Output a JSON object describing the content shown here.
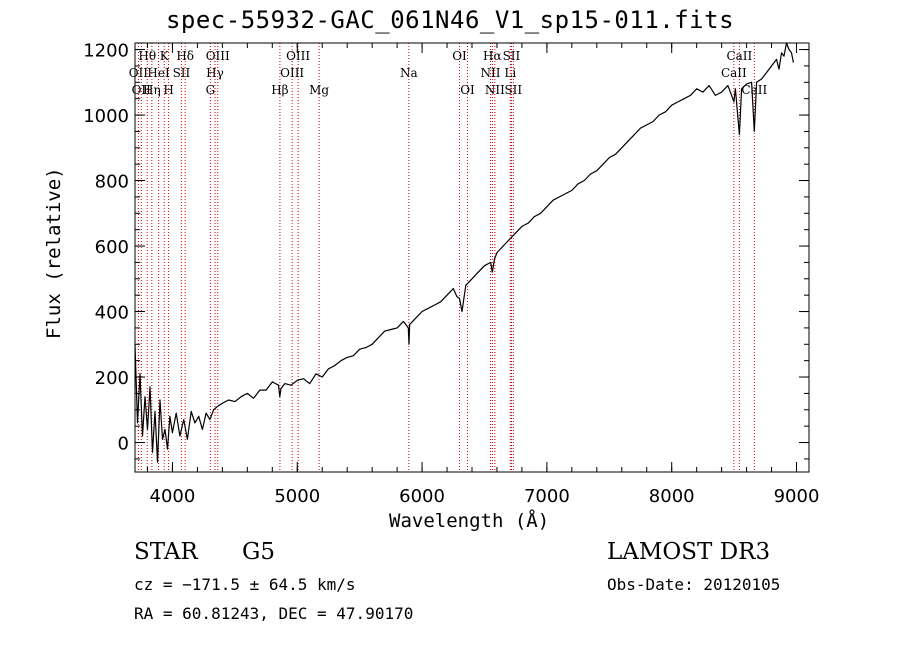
{
  "chart_data": {
    "type": "line",
    "title": "spec-55932-GAC_061N46_V1_sp15-011.fits",
    "xlabel": "Wavelength (Å)",
    "ylabel": "Flux (relative)",
    "xlim": [
      3700,
      9100
    ],
    "ylim": [
      -90,
      1220
    ],
    "xticks": [
      4000,
      5000,
      6000,
      7000,
      8000,
      9000
    ],
    "yticks": [
      0,
      200,
      400,
      600,
      800,
      1000,
      1200
    ],
    "grid": false,
    "series": [
      {
        "name": "flux",
        "x": [
          3700,
          3720,
          3740,
          3760,
          3780,
          3800,
          3820,
          3840,
          3860,
          3880,
          3900,
          3920,
          3940,
          3960,
          3980,
          4000,
          4030,
          4060,
          4090,
          4120,
          4150,
          4180,
          4210,
          4240,
          4270,
          4300,
          4330,
          4360,
          4400,
          4450,
          4500,
          4550,
          4600,
          4650,
          4700,
          4750,
          4800,
          4850,
          4860,
          4870,
          4900,
          4950,
          5000,
          5050,
          5100,
          5150,
          5200,
          5250,
          5300,
          5350,
          5400,
          5450,
          5500,
          5550,
          5600,
          5650,
          5700,
          5750,
          5800,
          5850,
          5890,
          5895,
          5900,
          5950,
          6000,
          6050,
          6100,
          6150,
          6200,
          6250,
          6280,
          6300,
          6320,
          6350,
          6400,
          6450,
          6500,
          6550,
          6563,
          6580,
          6600,
          6650,
          6700,
          6750,
          6800,
          6850,
          6900,
          6950,
          7000,
          7050,
          7100,
          7150,
          7200,
          7250,
          7300,
          7350,
          7400,
          7450,
          7500,
          7550,
          7600,
          7650,
          7700,
          7750,
          7800,
          7850,
          7900,
          7950,
          8000,
          8050,
          8100,
          8150,
          8200,
          8250,
          8300,
          8350,
          8400,
          8450,
          8480,
          8498,
          8510,
          8542,
          8560,
          8600,
          8640,
          8662,
          8680,
          8720,
          8760,
          8800,
          8840,
          8860,
          8880,
          8900,
          8920,
          8940,
          8960,
          8975
        ],
        "y": [
          300,
          60,
          210,
          20,
          140,
          40,
          170,
          -30,
          95,
          -60,
          130,
          10,
          40,
          -20,
          80,
          30,
          90,
          20,
          70,
          10,
          95,
          60,
          80,
          40,
          90,
          70,
          100,
          110,
          120,
          130,
          125,
          140,
          150,
          135,
          160,
          160,
          185,
          175,
          140,
          165,
          180,
          175,
          190,
          195,
          180,
          210,
          200,
          225,
          235,
          250,
          260,
          265,
          285,
          290,
          300,
          320,
          340,
          345,
          350,
          370,
          350,
          300,
          360,
          380,
          400,
          410,
          420,
          430,
          450,
          470,
          445,
          440,
          400,
          480,
          500,
          520,
          540,
          550,
          520,
          560,
          580,
          600,
          620,
          640,
          660,
          670,
          690,
          700,
          720,
          740,
          750,
          760,
          770,
          790,
          800,
          820,
          830,
          850,
          870,
          880,
          900,
          920,
          940,
          960,
          970,
          980,
          1000,
          1010,
          1030,
          1040,
          1050,
          1060,
          1080,
          1070,
          1090,
          1060,
          1070,
          1090,
          1060,
          1040,
          1080,
          940,
          1080,
          1095,
          1100,
          950,
          1100,
          1110,
          1130,
          1150,
          1170,
          1140,
          1190,
          1180,
          1220,
          1200,
          1190,
          1160
        ]
      }
    ],
    "line_markers": [
      {
        "w": 3727,
        "label": "OII",
        "row": 2
      },
      {
        "w": 3750,
        "label": "OII",
        "row": 3
      },
      {
        "w": 3798,
        "label": "Hθ",
        "row": 1
      },
      {
        "w": 3835,
        "label": "Hη",
        "row": 3
      },
      {
        "w": 3889,
        "label": "HeI",
        "row": 2
      },
      {
        "w": 3934,
        "label": "K",
        "row": 1
      },
      {
        "w": 3969,
        "label": "H",
        "row": 3
      },
      {
        "w": 4072,
        "label": "SII",
        "row": 2
      },
      {
        "w": 4102,
        "label": "Hδ",
        "row": 1
      },
      {
        "w": 4304,
        "label": "G",
        "row": 3
      },
      {
        "w": 4341,
        "label": "Hγ",
        "row": 2
      },
      {
        "w": 4363,
        "label": "OIII",
        "row": 1
      },
      {
        "w": 4861,
        "label": "Hβ",
        "row": 3
      },
      {
        "w": 4959,
        "label": "OIII",
        "row": 2
      },
      {
        "w": 5007,
        "label": "OIII",
        "row": 1
      },
      {
        "w": 5175,
        "label": "Mg",
        "row": 3
      },
      {
        "w": 5894,
        "label": "Na",
        "row": 2
      },
      {
        "w": 6300,
        "label": "OI",
        "row": 1
      },
      {
        "w": 6364,
        "label": "OI",
        "row": 3
      },
      {
        "w": 6548,
        "label": "NII",
        "row": 2
      },
      {
        "w": 6563,
        "label": "Hα",
        "row": 1
      },
      {
        "w": 6583,
        "label": "NII",
        "row": 3
      },
      {
        "w": 6707,
        "label": "Li",
        "row": 2
      },
      {
        "w": 6716,
        "label": "SII",
        "row": 1
      },
      {
        "w": 6731,
        "label": "SII",
        "row": 3
      },
      {
        "w": 8498,
        "label": "CaII",
        "row": 2
      },
      {
        "w": 8542,
        "label": "CaII",
        "row": 1
      },
      {
        "w": 8662,
        "label": "CaII",
        "row": 3
      }
    ]
  },
  "info": {
    "object_class": "STAR",
    "subclass": "G5",
    "survey": "LAMOST DR3",
    "velocity": "cz = −171.5 ± 64.5 km/s",
    "obs_date": "Obs-Date: 20120105",
    "coords": "RA =  60.81243, DEC =  47.90170"
  },
  "colors": {
    "spectrum": "#000000",
    "marker_line": "#cc0000",
    "axes": "#000000"
  }
}
